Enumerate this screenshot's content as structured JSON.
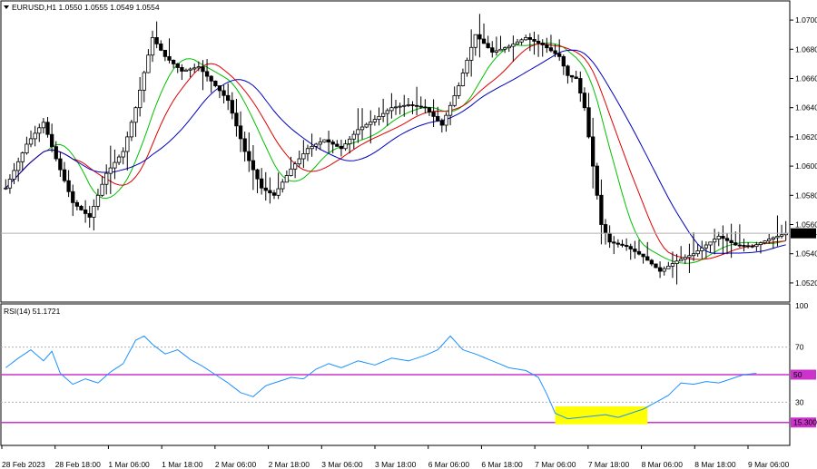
{
  "header": {
    "symbol": "EURUSD,H1",
    "ohlc": "1.0550 1.0555 1.0549 1.0554",
    "rsi_label": "RSI(14) 51.1721"
  },
  "colors": {
    "up_candle": "#ffffff",
    "down_candle": "#000000",
    "ma_fast": "#00c000",
    "ma_mid": "#e00000",
    "ma_slow": "#0000c0",
    "rsi": "#1e90ff",
    "level": "#cc33cc",
    "highlight": "#ffff00",
    "price_tag": "#000000"
  },
  "chart_data": [
    {
      "type": "candlestick",
      "price_axis": {
        "ticks": [
          "1.0700",
          "1.0680",
          "1.0660",
          "1.0640",
          "1.0620",
          "1.0600",
          "1.0580",
          "1.0560",
          "1.0540",
          "1.0520"
        ],
        "range": [
          1.051,
          1.071
        ]
      },
      "current_price_label": "1.0554",
      "current_price": 1.0554,
      "time_labels": [
        "28 Feb 2023",
        "28 Feb 18:00",
        "1 Mar 06:00",
        "1 Mar 18:00",
        "2 Mar 06:00",
        "2 Mar 18:00",
        "3 Mar 06:00",
        "3 Mar 18:00",
        "6 Mar 06:00",
        "6 Mar 18:00",
        "7 Mar 06:00",
        "7 Mar 18:00",
        "8 Mar 06:00",
        "8 Mar 18:00",
        "9 Mar 06:00"
      ],
      "close_anchors": [
        [
          0,
          1.0585
        ],
        [
          5,
          1.0615
        ],
        [
          9,
          1.063
        ],
        [
          12,
          1.0605
        ],
        [
          16,
          1.0575
        ],
        [
          20,
          1.0565
        ],
        [
          24,
          1.0595
        ],
        [
          28,
          1.061
        ],
        [
          31,
          1.064
        ],
        [
          35,
          1.0688
        ],
        [
          38,
          1.0675
        ],
        [
          42,
          1.0665
        ],
        [
          46,
          1.0668
        ],
        [
          50,
          1.0655
        ],
        [
          53,
          1.0645
        ],
        [
          57,
          1.061
        ],
        [
          61,
          1.0585
        ],
        [
          64,
          1.058
        ],
        [
          68,
          1.0598
        ],
        [
          72,
          1.0612
        ],
        [
          76,
          1.0618
        ],
        [
          80,
          1.0612
        ],
        [
          84,
          1.0625
        ],
        [
          88,
          1.0632
        ],
        [
          92,
          1.064
        ],
        [
          96,
          1.0642
        ],
        [
          100,
          1.064
        ],
        [
          104,
          1.0628
        ],
        [
          108,
          1.0655
        ],
        [
          112,
          1.069
        ],
        [
          116,
          1.0678
        ],
        [
          120,
          1.0682
        ],
        [
          124,
          1.0688
        ],
        [
          128,
          1.0683
        ],
        [
          132,
          1.0675
        ],
        [
          134,
          1.0662
        ],
        [
          136,
          1.066
        ],
        [
          138,
          1.064
        ],
        [
          140,
          1.06
        ],
        [
          142,
          1.056
        ],
        [
          144,
          1.0548
        ],
        [
          148,
          1.0545
        ],
        [
          152,
          1.0538
        ],
        [
          156,
          1.0528
        ],
        [
          160,
          1.0535
        ],
        [
          164,
          1.054
        ],
        [
          168,
          1.0548
        ],
        [
          170,
          1.0552
        ],
        [
          174,
          1.0546
        ],
        [
          178,
          1.0545
        ],
        [
          182,
          1.055
        ],
        [
          186,
          1.0554
        ]
      ],
      "moving_averages": [
        {
          "name": "fast",
          "lag": 5
        },
        {
          "name": "mid",
          "lag": 8
        },
        {
          "name": "slow",
          "lag": 13
        }
      ]
    },
    {
      "type": "line",
      "name": "RSI(14)",
      "value": 51.1721,
      "range": [
        0,
        100
      ],
      "levels": [
        70,
        50,
        30,
        15.3
      ],
      "axis_ticks": [
        "100",
        "70",
        "50",
        "30"
      ],
      "level_tags": [
        "50",
        "15.300"
      ],
      "anchors": [
        [
          0,
          55
        ],
        [
          3,
          62
        ],
        [
          6,
          68
        ],
        [
          9,
          60
        ],
        [
          11,
          67
        ],
        [
          13,
          51
        ],
        [
          16,
          43
        ],
        [
          19,
          47
        ],
        [
          22,
          44
        ],
        [
          25,
          52
        ],
        [
          28,
          58
        ],
        [
          31,
          75
        ],
        [
          33,
          78
        ],
        [
          35,
          72
        ],
        [
          38,
          65
        ],
        [
          41,
          68
        ],
        [
          44,
          61
        ],
        [
          47,
          56
        ],
        [
          50,
          50
        ],
        [
          53,
          44
        ],
        [
          56,
          37
        ],
        [
          59,
          34
        ],
        [
          62,
          42
        ],
        [
          65,
          45
        ],
        [
          68,
          48
        ],
        [
          71,
          47
        ],
        [
          74,
          54
        ],
        [
          77,
          58
        ],
        [
          80,
          55
        ],
        [
          84,
          60
        ],
        [
          88,
          57
        ],
        [
          92,
          62
        ],
        [
          96,
          60
        ],
        [
          100,
          64
        ],
        [
          103,
          68
        ],
        [
          106,
          78
        ],
        [
          109,
          68
        ],
        [
          112,
          65
        ],
        [
          116,
          60
        ],
        [
          120,
          55
        ],
        [
          124,
          53
        ],
        [
          127,
          48
        ],
        [
          129,
          36
        ],
        [
          131,
          22
        ],
        [
          134,
          18
        ],
        [
          137,
          19
        ],
        [
          140,
          20
        ],
        [
          143,
          21
        ],
        [
          146,
          19
        ],
        [
          149,
          22
        ],
        [
          152,
          25
        ],
        [
          155,
          30
        ],
        [
          158,
          35
        ],
        [
          161,
          44
        ],
        [
          164,
          43
        ],
        [
          167,
          45
        ],
        [
          170,
          44
        ],
        [
          173,
          47
        ],
        [
          176,
          50
        ],
        [
          179,
          51
        ]
      ],
      "highlight": {
        "from_index": 131,
        "to_index": 153,
        "from_value": 14,
        "to_value": 27
      }
    }
  ]
}
